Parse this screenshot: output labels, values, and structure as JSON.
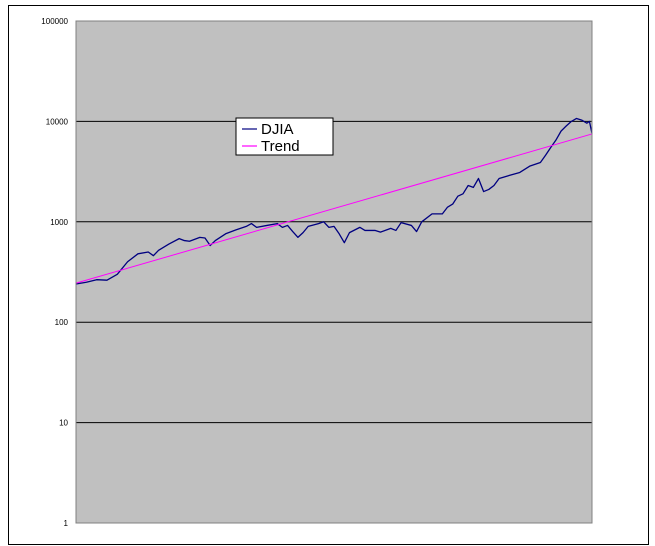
{
  "chart_data": {
    "type": "line",
    "title": "",
    "xlabel": "",
    "ylabel": "",
    "y_scale": "log",
    "ylim": [
      1,
      100000
    ],
    "y_ticks": [
      {
        "value": 1,
        "label": "1"
      },
      {
        "value": 10,
        "label": "10"
      },
      {
        "value": 100,
        "label": "100"
      },
      {
        "value": 1000,
        "label": "1000"
      },
      {
        "value": 10000,
        "label": "10000"
      },
      {
        "value": 100000,
        "label": "100000"
      }
    ],
    "x_ticks": [],
    "xlim": [
      0,
      100
    ],
    "grid": {
      "horizontal": true,
      "vertical": false
    },
    "plot_background": "#c0c0c0",
    "legend": {
      "placement": "upper-center-left",
      "entries": [
        "DJIA",
        "Trend"
      ]
    },
    "series": [
      {
        "name": "DJIA",
        "color": "#000080",
        "points": [
          [
            0,
            240
          ],
          [
            2,
            250
          ],
          [
            4,
            265
          ],
          [
            6,
            262
          ],
          [
            8,
            300
          ],
          [
            10,
            400
          ],
          [
            12,
            480
          ],
          [
            14,
            500
          ],
          [
            15,
            460
          ],
          [
            16,
            520
          ],
          [
            18,
            600
          ],
          [
            20,
            680
          ],
          [
            21,
            650
          ],
          [
            22,
            640
          ],
          [
            24,
            700
          ],
          [
            25,
            690
          ],
          [
            26,
            580
          ],
          [
            27,
            650
          ],
          [
            29,
            760
          ],
          [
            31,
            830
          ],
          [
            33,
            900
          ],
          [
            34,
            960
          ],
          [
            35,
            880
          ],
          [
            37,
            920
          ],
          [
            39,
            960
          ],
          [
            40,
            880
          ],
          [
            41,
            920
          ],
          [
            42,
            800
          ],
          [
            43,
            700
          ],
          [
            44,
            780
          ],
          [
            45,
            900
          ],
          [
            47,
            960
          ],
          [
            48,
            1000
          ],
          [
            49,
            880
          ],
          [
            50,
            900
          ],
          [
            51,
            760
          ],
          [
            52,
            620
          ],
          [
            53,
            780
          ],
          [
            55,
            880
          ],
          [
            56,
            820
          ],
          [
            58,
            820
          ],
          [
            59,
            790
          ],
          [
            61,
            860
          ],
          [
            62,
            820
          ],
          [
            63,
            980
          ],
          [
            65,
            920
          ],
          [
            66,
            800
          ],
          [
            67,
            1000
          ],
          [
            69,
            1200
          ],
          [
            71,
            1200
          ],
          [
            72,
            1400
          ],
          [
            73,
            1500
          ],
          [
            74,
            1800
          ],
          [
            75,
            1900
          ],
          [
            76,
            2300
          ],
          [
            77,
            2200
          ],
          [
            78,
            2700
          ],
          [
            79,
            2000
          ],
          [
            80,
            2100
          ],
          [
            81,
            2300
          ],
          [
            82,
            2700
          ],
          [
            84,
            2900
          ],
          [
            86,
            3100
          ],
          [
            88,
            3600
          ],
          [
            90,
            3900
          ],
          [
            91,
            4600
          ],
          [
            92,
            5500
          ],
          [
            93,
            6500
          ],
          [
            94,
            8000
          ],
          [
            95,
            9000
          ],
          [
            96,
            10000
          ],
          [
            97,
            10700
          ],
          [
            98,
            10300
          ],
          [
            99,
            9600
          ],
          [
            99.5,
            10000
          ],
          [
            100,
            7600
          ]
        ]
      },
      {
        "name": "Trend",
        "color": "#ff00ff",
        "points": [
          [
            0,
            245
          ],
          [
            100,
            7500
          ]
        ]
      }
    ]
  }
}
